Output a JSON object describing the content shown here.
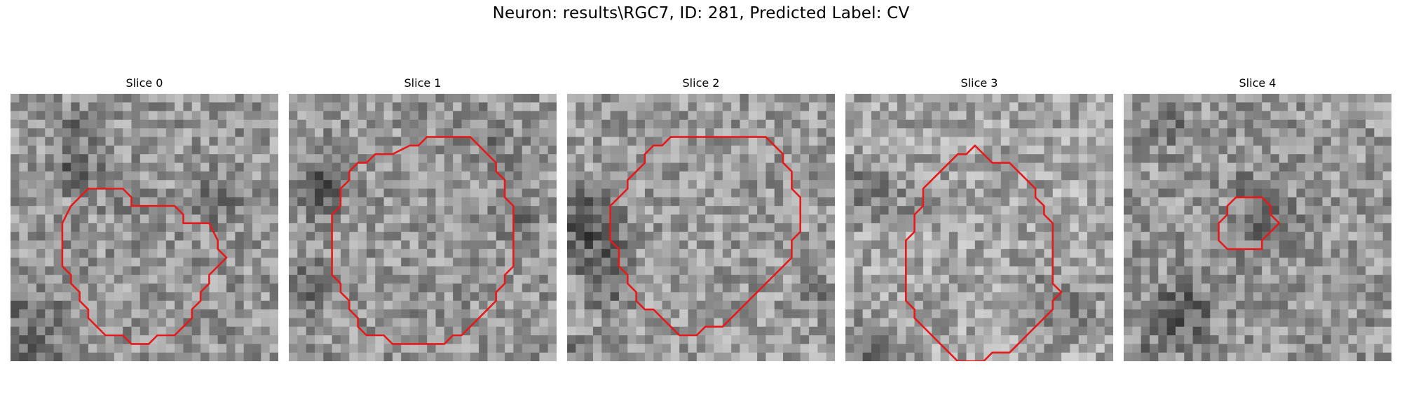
{
  "figure": {
    "title": "Neuron: results\\RGC7, ID: 281, Predicted Label: CV"
  },
  "slices": [
    {
      "title": "Slice 0"
    },
    {
      "title": "Slice 1"
    },
    {
      "title": "Slice 2"
    },
    {
      "title": "Slice 3"
    },
    {
      "title": "Slice 4"
    }
  ],
  "colors": {
    "contour": "#e61a1a",
    "background": "#ffffff"
  }
}
